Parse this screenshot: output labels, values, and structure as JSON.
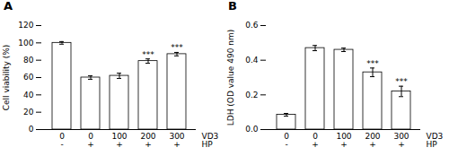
{
  "chart_data": [
    {
      "type": "bar",
      "title": "A",
      "ylabel": "Cell viability (%)",
      "xlabel": [
        "VD3",
        "HP"
      ],
      "categories": [
        [
          "0",
          "-"
        ],
        [
          "0",
          "+"
        ],
        [
          "100",
          "+"
        ],
        [
          "200",
          "+"
        ],
        [
          "300",
          "+"
        ]
      ],
      "values": [
        100,
        60,
        62,
        79,
        87
      ],
      "errors": [
        1.5,
        2.0,
        3.0,
        2.5,
        2.0
      ],
      "annotations": [
        null,
        null,
        null,
        "***",
        "***"
      ],
      "color": "#ffffff",
      "ylim": [
        0,
        120
      ],
      "yticks": [
        0,
        20,
        40,
        60,
        80,
        100,
        120
      ],
      "grid": false
    },
    {
      "type": "bar",
      "title": "B",
      "ylabel": "LDH (OD value 490 nm)",
      "xlabel": [
        "VD3",
        "HP"
      ],
      "categories": [
        [
          "0",
          "-"
        ],
        [
          "0",
          "+"
        ],
        [
          "100",
          "+"
        ],
        [
          "200",
          "+"
        ],
        [
          "300",
          "+"
        ]
      ],
      "values": [
        0.085,
        0.47,
        0.46,
        0.33,
        0.22
      ],
      "errors": [
        0.008,
        0.015,
        0.01,
        0.025,
        0.03
      ],
      "annotations": [
        null,
        null,
        null,
        "***",
        "***"
      ],
      "color": "#ffffff",
      "ylim": [
        0,
        0.6
      ],
      "yticks": [
        {
          "value": 0,
          "label": "0.0"
        },
        0.2,
        0.4,
        0.6
      ],
      "grid": false
    }
  ]
}
